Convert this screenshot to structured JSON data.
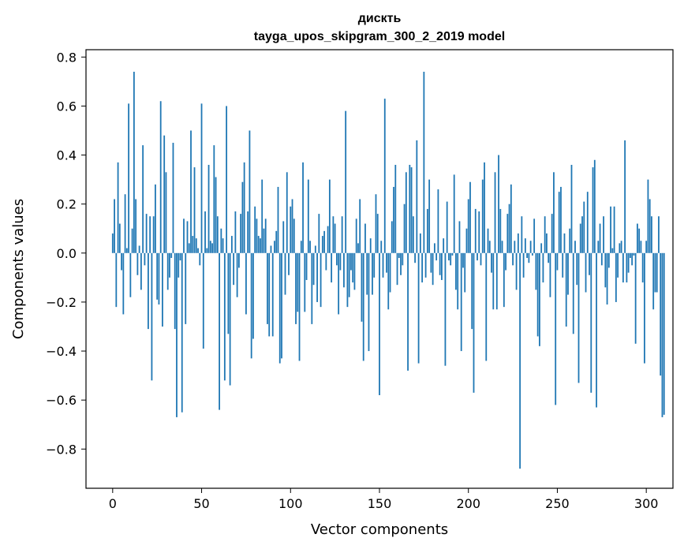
{
  "chart_data": {
    "type": "bar",
    "title_line1": "дискть",
    "title_line2": "tayga_upos_skipgram_300_2_2019 model",
    "xlabel": "Vector components",
    "ylabel": "Components values",
    "xlim": [
      -15,
      315
    ],
    "ylim": [
      -0.96,
      0.83
    ],
    "x_ticks": [
      0,
      50,
      100,
      150,
      200,
      250,
      300
    ],
    "y_ticks": [
      -0.8,
      -0.6,
      -0.4,
      -0.2,
      0.0,
      0.2,
      0.4,
      0.6,
      0.8
    ],
    "bar_color": "#1f77b4",
    "values": [
      0.08,
      0.22,
      -0.22,
      0.37,
      0.12,
      -0.07,
      -0.25,
      0.24,
      0.02,
      0.61,
      -0.18,
      0.1,
      0.74,
      0.22,
      -0.09,
      0.03,
      -0.15,
      0.44,
      -0.05,
      0.16,
      -0.31,
      0.15,
      -0.52,
      0.15,
      0.28,
      -0.19,
      -0.21,
      0.62,
      -0.3,
      0.48,
      0.33,
      -0.15,
      -0.1,
      -0.02,
      0.45,
      -0.31,
      -0.67,
      -0.1,
      -0.03,
      -0.65,
      0.14,
      -0.29,
      0.13,
      0.04,
      0.5,
      0.07,
      0.35,
      0.06,
      0.02,
      -0.05,
      0.61,
      -0.39,
      0.17,
      0.02,
      0.36,
      0.05,
      0.04,
      0.44,
      0.31,
      0.15,
      -0.64,
      0.1,
      0.06,
      -0.52,
      0.6,
      -0.33,
      -0.54,
      0.07,
      -0.13,
      0.17,
      -0.18,
      -0.06,
      0.16,
      0.29,
      0.37,
      -0.25,
      0.17,
      0.5,
      -0.43,
      -0.35,
      0.19,
      0.14,
      0.07,
      0.06,
      0.3,
      0.1,
      0.14,
      -0.29,
      -0.34,
      0.03,
      -0.34,
      0.05,
      0.09,
      0.27,
      -0.45,
      -0.43,
      0.13,
      -0.17,
      0.33,
      -0.09,
      0.19,
      0.22,
      0.14,
      -0.29,
      -0.24,
      -0.44,
      0.05,
      0.37,
      -0.24,
      -0.11,
      0.3,
      0.05,
      -0.29,
      -0.13,
      0.03,
      -0.2,
      0.16,
      -0.22,
      0.07,
      0.09,
      -0.07,
      0.11,
      0.3,
      -0.12,
      0.15,
      0.12,
      -0.05,
      -0.25,
      -0.07,
      0.15,
      -0.14,
      0.58,
      -0.22,
      -0.18,
      -0.07,
      -0.12,
      -0.15,
      0.14,
      0.04,
      0.22,
      -0.28,
      -0.44,
      0.12,
      -0.17,
      -0.4,
      0.06,
      -0.17,
      -0.1,
      0.24,
      0.16,
      -0.58,
      0.05,
      -0.1,
      0.63,
      -0.08,
      -0.23,
      -0.16,
      0.13,
      0.27,
      0.36,
      -0.13,
      -0.02,
      -0.09,
      -0.05,
      0.2,
      0.33,
      -0.48,
      0.36,
      0.35,
      0.15,
      -0.04,
      0.46,
      -0.45,
      0.08,
      -0.12,
      0.74,
      -0.1,
      0.18,
      0.3,
      -0.08,
      -0.13,
      0.04,
      -0.03,
      0.26,
      -0.09,
      -0.11,
      0.06,
      -0.46,
      0.21,
      -0.03,
      -0.05,
      -0.01,
      0.32,
      -0.15,
      -0.23,
      0.13,
      -0.4,
      -0.06,
      -0.16,
      0.1,
      0.22,
      0.29,
      -0.31,
      -0.57,
      0.18,
      -0.03,
      0.17,
      -0.05,
      0.3,
      0.37,
      -0.44,
      0.1,
      0.05,
      -0.08,
      -0.23,
      0.33,
      -0.23,
      0.4,
      0.18,
      0.05,
      -0.22,
      -0.07,
      0.16,
      0.2,
      0.28,
      -0.05,
      0.05,
      -0.15,
      0.08,
      -0.88,
      0.15,
      -0.1,
      0.06,
      -0.02,
      -0.04,
      0.05,
      -0.01,
      0.14,
      -0.15,
      -0.34,
      -0.38,
      0.04,
      -0.12,
      0.15,
      0.08,
      -0.04,
      -0.18,
      0.16,
      0.33,
      -0.62,
      -0.07,
      0.25,
      0.27,
      -0.1,
      0.08,
      -0.3,
      -0.17,
      0.1,
      0.36,
      -0.33,
      0.05,
      -0.13,
      -0.53,
      0.12,
      0.15,
      0.21,
      -0.16,
      0.25,
      -0.09,
      -0.57,
      0.35,
      0.38,
      -0.63,
      0.05,
      0.12,
      -0.05,
      0.15,
      -0.14,
      -0.21,
      -0.06,
      0.19,
      0.02,
      0.19,
      -0.2,
      -0.1,
      0.04,
      0.05,
      -0.12,
      0.46,
      -0.12,
      -0.08,
      -0.02,
      -0.05,
      -0.01,
      -0.37,
      0.12,
      0.1,
      0.05,
      -0.12,
      -0.45,
      0.05,
      0.3,
      0.22,
      0.15,
      -0.23,
      -0.16,
      -0.16,
      0.15,
      -0.5,
      -0.67,
      -0.66
    ]
  }
}
